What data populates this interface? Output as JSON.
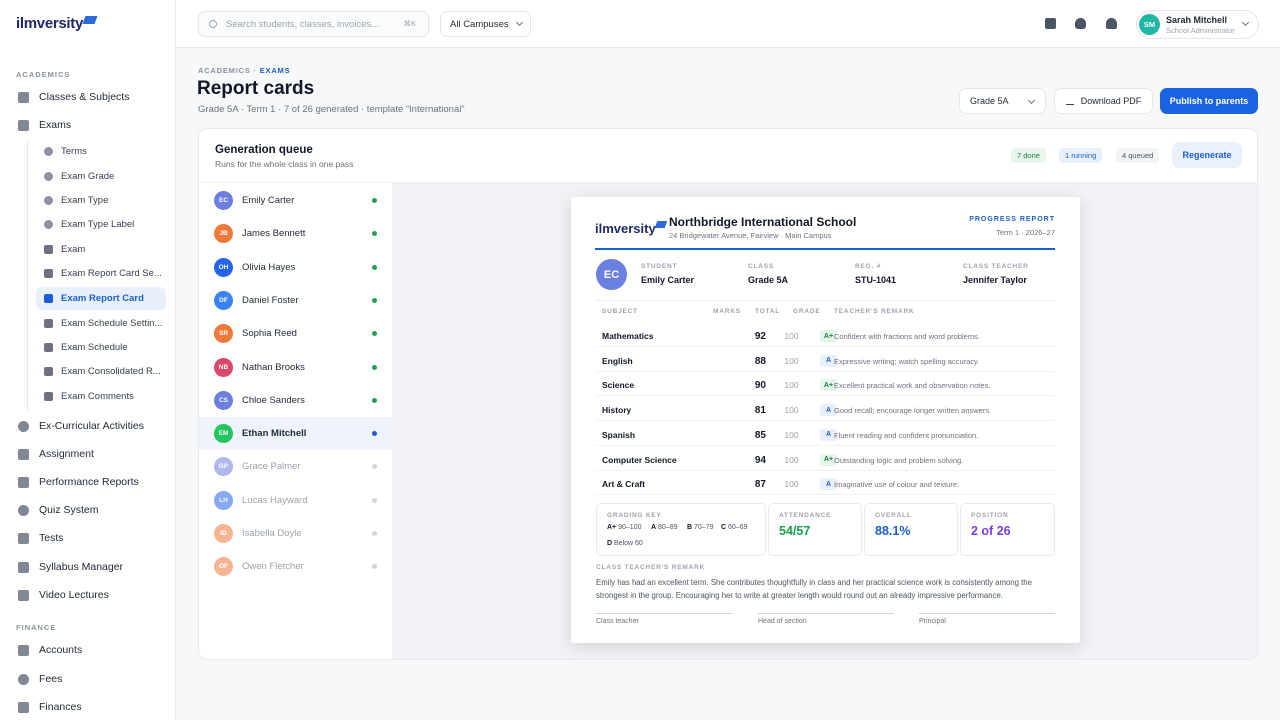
{
  "brand": {
    "logo_text": "ilmversity"
  },
  "sidebar": {
    "section_academics": "ACADEMICS",
    "section_finance": "FINANCE",
    "items": [
      {
        "label": "Classes & Subjects"
      },
      {
        "label": "Exams"
      }
    ],
    "exam_sub": [
      {
        "label": "Terms"
      },
      {
        "label": "Exam Grade"
      },
      {
        "label": "Exam Type"
      },
      {
        "label": "Exam Type Label"
      },
      {
        "label": "Exam"
      },
      {
        "label": "Exam Report Card Se..."
      },
      {
        "label": "Exam Report Card"
      },
      {
        "label": "Exam Schedule Settin..."
      },
      {
        "label": "Exam Schedule"
      },
      {
        "label": "Exam Consolidated R..."
      },
      {
        "label": "Exam Comments"
      }
    ],
    "items_after": [
      {
        "label": "Ex-Curricular Activities"
      },
      {
        "label": "Assignment"
      },
      {
        "label": "Performance Reports"
      },
      {
        "label": "Quiz System"
      },
      {
        "label": "Tests"
      },
      {
        "label": "Syllabus Manager"
      },
      {
        "label": "Video Lectures"
      }
    ],
    "finance_items": [
      {
        "label": "Accounts"
      },
      {
        "label": "Fees"
      },
      {
        "label": "Finances"
      }
    ]
  },
  "topbar": {
    "search_placeholder": "Search students, classes, invoices...",
    "search_shortcut": "⌘K",
    "campus": "All Campuses",
    "user_initials": "SM",
    "user_name": "Sarah Mitchell",
    "user_role": "School Administrator"
  },
  "page": {
    "breadcrumb_parent": "ACADEMICS",
    "breadcrumb_sep": "·",
    "breadcrumb_current": "EXAMS",
    "title": "Report cards",
    "subtitle": "Grade 5A · Term 1 · 7 of 26 generated · template “International”",
    "grade_select": "Grade 5A",
    "download_label": "Download PDF",
    "publish_label": "Publish to parents"
  },
  "queue": {
    "title": "Generation queue",
    "subtitle": "Runs for the whole class in one pass",
    "done": "7 done",
    "running": "1 running",
    "queued": "4 queued",
    "regenerate": "Regenerate",
    "students": [
      {
        "initials": "EC",
        "name": "Emily Carter",
        "color": "#6b7fe0",
        "status": "done"
      },
      {
        "initials": "JB",
        "name": "James Bennett",
        "color": "#f0793a",
        "status": "done"
      },
      {
        "initials": "OH",
        "name": "Olivia Hayes",
        "color": "#2563eb",
        "status": "done"
      },
      {
        "initials": "DF",
        "name": "Daniel Foster",
        "color": "#3b82f6",
        "status": "done"
      },
      {
        "initials": "SR",
        "name": "Sophia Reed",
        "color": "#f0793a",
        "status": "done"
      },
      {
        "initials": "NB",
        "name": "Nathan Brooks",
        "color": "#e0456a",
        "status": "done"
      },
      {
        "initials": "CS",
        "name": "Chloe Sanders",
        "color": "#6b7fe0",
        "status": "done"
      },
      {
        "initials": "EM",
        "name": "Ethan Mitchell",
        "color": "#22c55e",
        "status": "running"
      },
      {
        "initials": "GP",
        "name": "Grace Palmer",
        "color": "#6b7fe0",
        "status": "queued"
      },
      {
        "initials": "LH",
        "name": "Lucas Hayward",
        "color": "#2563eb",
        "status": "queued"
      },
      {
        "initials": "ID",
        "name": "Isabella Doyle",
        "color": "#f0793a",
        "status": "queued"
      },
      {
        "initials": "OF",
        "name": "Owen Fletcher",
        "color": "#f0793a",
        "status": "queued"
      }
    ]
  },
  "report": {
    "logo_text": "ilmversity",
    "school": "Northbridge International School",
    "address": "24 Bridgewater Avenue, Fairview · Main Campus",
    "doc_label": "PROGRESS REPORT",
    "term": "Term 1 · 2026–27",
    "student_initials": "EC",
    "fields": [
      {
        "label": "STUDENT",
        "value": "Emily Carter"
      },
      {
        "label": "CLASS",
        "value": "Grade 5A"
      },
      {
        "label": "REG. #",
        "value": "STU-1041"
      },
      {
        "label": "CLASS TEACHER",
        "value": "Jennifer Taylor"
      }
    ],
    "headers": {
      "subject": "SUBJECT",
      "marks": "MARKS",
      "total": "TOTAL",
      "grade": "GRADE",
      "remark": "TEACHER'S REMARK"
    },
    "rows": [
      {
        "subject": "Mathematics",
        "marks": "92",
        "total": "100",
        "grade": "A+",
        "remark": "Confident with fractions and word problems."
      },
      {
        "subject": "English",
        "marks": "88",
        "total": "100",
        "grade": "A",
        "remark": "Expressive writing; watch spelling accuracy."
      },
      {
        "subject": "Science",
        "marks": "90",
        "total": "100",
        "grade": "A+",
        "remark": "Excellent practical work and observation notes."
      },
      {
        "subject": "History",
        "marks": "81",
        "total": "100",
        "grade": "A",
        "remark": "Good recall; encourage longer written answers."
      },
      {
        "subject": "Spanish",
        "marks": "85",
        "total": "100",
        "grade": "A",
        "remark": "Fluent reading and confident pronunciation."
      },
      {
        "subject": "Computer Science",
        "marks": "94",
        "total": "100",
        "grade": "A+",
        "remark": "Outstanding logic and problem solving."
      },
      {
        "subject": "Art & Craft",
        "marks": "87",
        "total": "100",
        "grade": "A",
        "remark": "Imaginative use of colour and texture."
      }
    ],
    "grading_key_label": "GRADING KEY",
    "grading_key": [
      {
        "grade": "A+",
        "range": "90–100"
      },
      {
        "grade": "A",
        "range": "80–89"
      },
      {
        "grade": "B",
        "range": "70–79"
      },
      {
        "grade": "C",
        "range": "60–69"
      },
      {
        "grade": "D",
        "range": "Below 60"
      }
    ],
    "attendance_label": "ATTENDANCE",
    "attendance": "54/57",
    "overall_label": "OVERALL",
    "overall": "88.1%",
    "position_label": "POSITION",
    "position": "2 of 26",
    "ctr_label": "CLASS TEACHER'S REMARK",
    "ctr_text": "Emily has had an excellent term. She contributes thoughtfully in class and her practical science work is consistently among the strongest in the group. Encouraging her to write at greater length would round out an already impressive performance.",
    "signatures": [
      "Class teacher",
      "Head of section",
      "Principal"
    ]
  },
  "colors": {
    "accent": "#1a63e0",
    "done": "#22a04b",
    "running": "#1a5fd6",
    "queued": "#d1d5db",
    "attendance": "#16a34a",
    "overall": "#1a5fd6",
    "position": "#7c3aed"
  }
}
